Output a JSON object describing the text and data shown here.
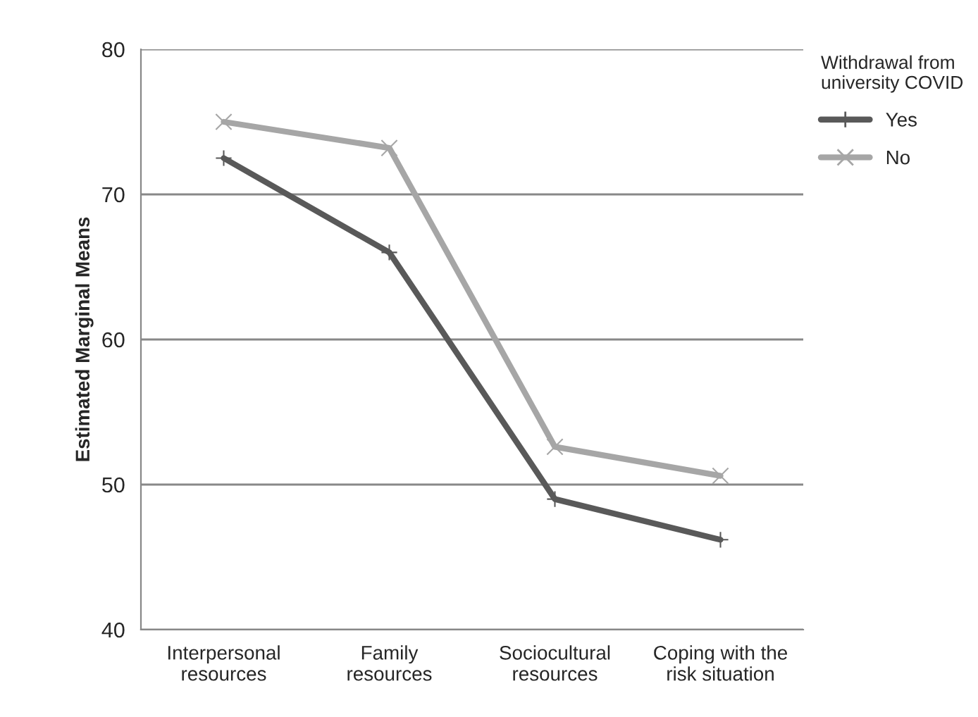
{
  "chart_data": {
    "type": "line",
    "ylabel": "Estimated Marginal Means",
    "legend_title": "Withdrawal from\nuniversity COVID",
    "categories": [
      "Interpersonal\nresources",
      "Family\nresources",
      "Sociocultural\nresources",
      "Coping with the\nrisk situation"
    ],
    "series": [
      {
        "name": "Yes",
        "color": "#595959",
        "marker": "plus",
        "values": [
          72.5,
          66.0,
          49.0,
          46.2
        ]
      },
      {
        "name": "No",
        "color": "#a6a6a6",
        "marker": "cross",
        "values": [
          75.0,
          73.2,
          52.6,
          50.6
        ]
      }
    ],
    "ylim": [
      40,
      80
    ],
    "yticks": [
      40,
      50,
      60,
      70,
      80
    ],
    "grid": "y",
    "legend": "right",
    "line_style": "solid"
  }
}
